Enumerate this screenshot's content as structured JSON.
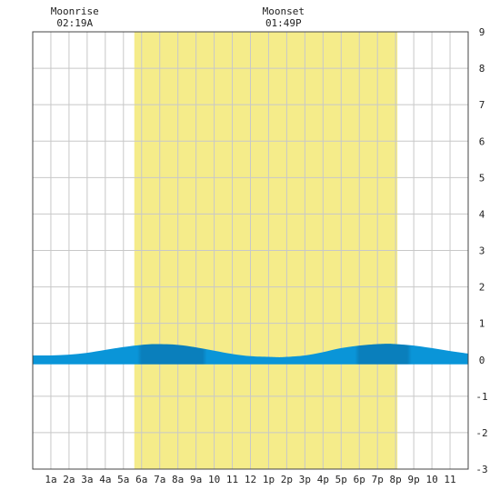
{
  "chart_data": {
    "type": "area",
    "title": "",
    "xlabel": "",
    "ylabel": "",
    "xlim": [
      0,
      24
    ],
    "ylim": [
      -3,
      9
    ],
    "x_tick_labels": [
      "1a",
      "2a",
      "3a",
      "4a",
      "5a",
      "6a",
      "7a",
      "8a",
      "9a",
      "10",
      "11",
      "12",
      "1p",
      "2p",
      "3p",
      "4p",
      "5p",
      "6p",
      "7p",
      "8p",
      "9p",
      "10",
      "11"
    ],
    "y_tick_values": [
      -3,
      -2,
      -1,
      0,
      1,
      2,
      3,
      4,
      5,
      6,
      7,
      8,
      9
    ],
    "grid": true,
    "daylight": {
      "start": 5.6,
      "end": 20.1
    },
    "moon_events": [
      {
        "label": "Moonrise",
        "time": "02:19A",
        "hour": 2.32
      },
      {
        "label": "Moonset",
        "time": "01:49P",
        "hour": 13.82
      }
    ],
    "series": [
      {
        "x": [
          0,
          1,
          2,
          3,
          4,
          5,
          6,
          6.8,
          8,
          9,
          10,
          11,
          12,
          13,
          13.6,
          14,
          15,
          16,
          17,
          18,
          19,
          19.6,
          20,
          21,
          22,
          23,
          24
        ],
        "values": [
          0.12,
          0.12,
          0.14,
          0.19,
          0.27,
          0.35,
          0.41,
          0.43,
          0.41,
          0.34,
          0.25,
          0.16,
          0.1,
          0.08,
          0.07,
          0.08,
          0.12,
          0.21,
          0.32,
          0.39,
          0.43,
          0.44,
          0.43,
          0.39,
          0.32,
          0.24,
          0.17
        ]
      }
    ],
    "colors": {
      "daylight": "#f5ec8a",
      "grid": "#c8c8c8",
      "tide_light": "#0a95d8",
      "tide_dark": "#0a7fbc",
      "axis": "#444444"
    }
  }
}
